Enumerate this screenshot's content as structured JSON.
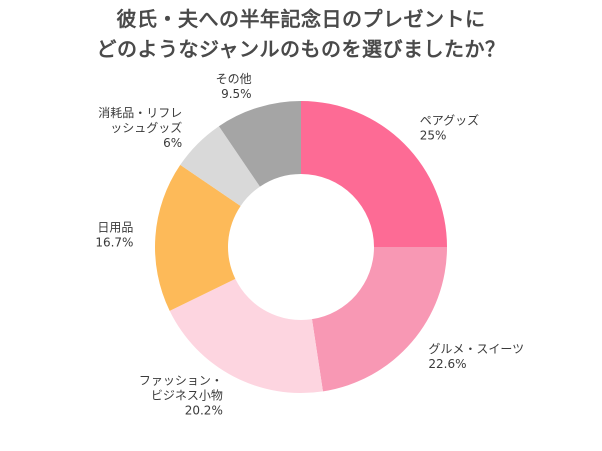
{
  "title": {
    "line1": "彼氏・夫への半年記念日のプレゼントに",
    "line2": "どのようなジャンルのものを選びましたか？"
  },
  "chart_data": {
    "type": "pie",
    "donut": true,
    "title": "彼氏・夫への半年記念日のプレゼントにどのようなジャンルのものを選びましたか？",
    "start_angle_deg": 0,
    "direction": "clockwise",
    "slices": [
      {
        "label_lines": [
          "ペアグッズ"
        ],
        "value": 25,
        "value_label": "25%",
        "color": "#fd6b95"
      },
      {
        "label_lines": [
          "グルメ・スイーツ"
        ],
        "value": 22.6,
        "value_label": "22.6%",
        "color": "#f898b4"
      },
      {
        "label_lines": [
          "ファッション・",
          "ビジネス小物"
        ],
        "value": 20.2,
        "value_label": "20.2%",
        "color": "#fdd5e0"
      },
      {
        "label_lines": [
          "日用品"
        ],
        "value": 16.7,
        "value_label": "16.7%",
        "color": "#fdba59"
      },
      {
        "label_lines": [
          "消耗品・リフレ",
          "ッシュグッズ"
        ],
        "value": 6,
        "value_label": "6%",
        "color": "#d9d9d9"
      },
      {
        "label_lines": [
          "その他"
        ],
        "value": 9.5,
        "value_label": "9.5%",
        "color": "#a5a5a5"
      }
    ]
  }
}
